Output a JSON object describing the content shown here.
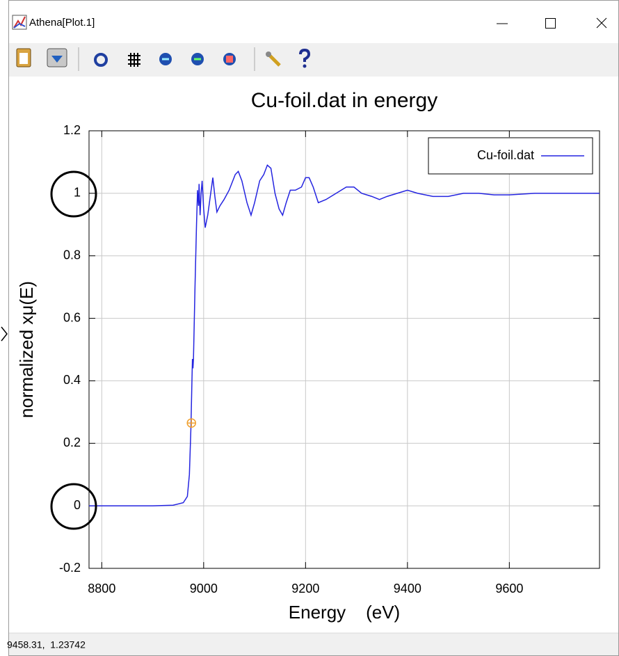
{
  "window": {
    "title": "Athena[Plot.1]"
  },
  "status": "9458.31,  1.23742",
  "chart_data": {
    "type": "line",
    "title": "Cu-foil.dat in energy",
    "xlabel": "Energy    (eV)",
    "ylabel": "normalized xμ(E)",
    "x": [
      8775,
      8850,
      8900,
      8940,
      8960,
      8968,
      8972,
      8975,
      8977,
      8978,
      8979,
      8980,
      8983,
      8986,
      8988,
      8990,
      8991,
      8993,
      8995,
      8997,
      9000,
      9003,
      9008,
      9013,
      9018,
      9022,
      9026,
      9032,
      9040,
      9050,
      9062,
      9068,
      9075,
      9085,
      9093,
      9100,
      9110,
      9118,
      9125,
      9132,
      9140,
      9148,
      9155,
      9162,
      9170,
      9180,
      9192,
      9200,
      9207,
      9215,
      9225,
      9240,
      9260,
      9280,
      9295,
      9310,
      9330,
      9345,
      9360,
      9380,
      9400,
      9420,
      9450,
      9480,
      9510,
      9540,
      9570,
      9600,
      9650,
      9700,
      9777
    ],
    "series": [
      {
        "name": "Cu-foil.dat",
        "color": "#2424e0",
        "values": [
          0,
          0,
          0,
          0.002,
          0.01,
          0.03,
          0.1,
          0.25,
          0.4,
          0.47,
          0.44,
          0.47,
          0.7,
          0.9,
          1.01,
          0.96,
          1.03,
          0.93,
          1.0,
          1.04,
          0.95,
          0.89,
          0.93,
          0.99,
          1.05,
          0.99,
          0.94,
          0.96,
          0.98,
          1.01,
          1.06,
          1.07,
          1.04,
          0.97,
          0.93,
          0.97,
          1.04,
          1.06,
          1.09,
          1.08,
          1.0,
          0.95,
          0.93,
          0.97,
          1.01,
          1.01,
          1.02,
          1.05,
          1.05,
          1.02,
          0.97,
          0.98,
          1.0,
          1.02,
          1.02,
          1.0,
          0.99,
          0.98,
          0.99,
          1.0,
          1.01,
          1.0,
          0.99,
          0.99,
          1.0,
          1.0,
          0.995,
          0.995,
          1.0,
          1.0,
          1.0
        ]
      }
    ],
    "marker": {
      "x": 8976,
      "y": 0.265,
      "color": "#f0a030"
    },
    "xlim": [
      8775,
      9777
    ],
    "ylim": [
      -0.2,
      1.2
    ],
    "xticks": [
      8800,
      9000,
      9200,
      9400,
      9600
    ],
    "yticks": [
      -0.2,
      0,
      0.2,
      0.4,
      0.6,
      0.8,
      1,
      1.2
    ],
    "grid": true,
    "legend": "upper right"
  }
}
